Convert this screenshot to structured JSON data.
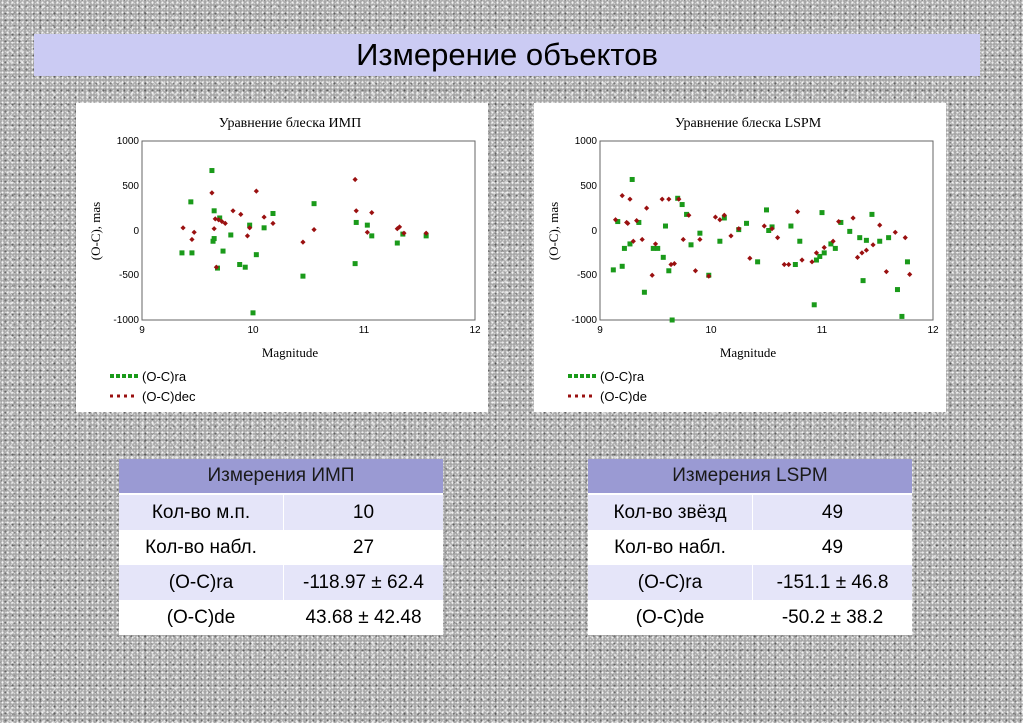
{
  "header": {
    "title": "Измерение объектов"
  },
  "chart_data": [
    {
      "type": "scatter",
      "title": "Уравнение блеска ИМП",
      "xlabel": "Magnitude",
      "ylabel": "(O-C), mas",
      "xlim": [
        9,
        12
      ],
      "ylim": [
        -1000,
        1000
      ],
      "xticks": [
        "9",
        "10",
        "11",
        "12"
      ],
      "yticks": [
        "1000",
        "500",
        "0",
        "-500",
        "-1000"
      ],
      "grid": false,
      "legend": "bottom-left",
      "series": [
        {
          "name": "(O-C)ra",
          "color": "#1a9a1a",
          "marker": "square",
          "x": [
            9.36,
            9.44,
            9.45,
            9.63,
            9.64,
            9.65,
            9.65,
            9.68,
            9.7,
            9.73,
            9.8,
            9.88,
            9.93,
            9.97,
            10.0,
            10.03,
            10.1,
            10.18,
            10.45,
            10.55,
            10.92,
            10.93,
            11.03,
            11.07,
            11.3,
            11.35,
            11.56
          ],
          "y": [
            -250,
            320,
            -250,
            670,
            -120,
            -90,
            220,
            -420,
            140,
            -230,
            -50,
            -380,
            -410,
            60,
            -920,
            -270,
            30,
            190,
            -510,
            300,
            -370,
            90,
            60,
            -60,
            -140,
            -40,
            -60
          ]
        },
        {
          "name": "(O-C)dec",
          "color": "#9a1010",
          "marker": "diamond",
          "x": [
            9.37,
            9.45,
            9.47,
            9.63,
            9.65,
            9.67,
            9.69,
            9.72,
            9.75,
            9.82,
            9.89,
            9.95,
            9.97,
            10.03,
            10.1,
            10.18,
            10.45,
            10.55,
            10.92,
            10.93,
            11.03,
            11.07,
            11.3,
            11.32,
            11.36,
            11.56,
            9.66
          ],
          "y": [
            30,
            -100,
            -20,
            420,
            20,
            -410,
            120,
            100,
            80,
            220,
            180,
            -60,
            30,
            440,
            150,
            80,
            -130,
            10,
            570,
            220,
            -20,
            200,
            20,
            40,
            -30,
            -30,
            130
          ]
        }
      ]
    },
    {
      "type": "scatter",
      "title": "Уравнение блеска LSPM",
      "xlabel": "Magnitude",
      "ylabel": "(O-C), mas",
      "xlim": [
        9,
        12
      ],
      "ylim": [
        -1000,
        1000
      ],
      "xticks": [
        "9",
        "10",
        "11",
        "12"
      ],
      "yticks": [
        "1000",
        "500",
        "0",
        "-500",
        "-1000"
      ],
      "grid": false,
      "legend": "bottom-left",
      "series": [
        {
          "name": "(O-C)ra",
          "color": "#1a9a1a",
          "marker": "square",
          "x": [
            9.12,
            9.2,
            9.22,
            9.27,
            9.29,
            9.35,
            9.4,
            9.48,
            9.52,
            9.59,
            9.62,
            9.65,
            9.7,
            9.74,
            9.78,
            9.82,
            9.9,
            9.98,
            10.08,
            10.12,
            10.25,
            10.42,
            10.5,
            10.52,
            10.72,
            10.76,
            10.8,
            10.93,
            10.95,
            10.98,
            11.0,
            11.08,
            11.12,
            11.17,
            11.34,
            11.37,
            11.4,
            11.45,
            11.52,
            11.6,
            11.72,
            11.77,
            11.68,
            9.57,
            10.55,
            11.25,
            11.02,
            9.16,
            10.32
          ],
          "y": [
            -440,
            -400,
            -200,
            -150,
            570,
            90,
            -690,
            -200,
            -200,
            50,
            -450,
            -1000,
            360,
            290,
            180,
            -160,
            -30,
            -500,
            -120,
            140,
            10,
            -350,
            230,
            0,
            50,
            -380,
            -120,
            -830,
            -330,
            -290,
            200,
            -150,
            -200,
            90,
            -80,
            -560,
            -110,
            180,
            -120,
            -80,
            -960,
            -350,
            -660,
            -300,
            40,
            -10,
            -250,
            100,
            80
          ]
        },
        {
          "name": "(O-C)de",
          "color": "#9a1010",
          "marker": "diamond",
          "x": [
            9.14,
            9.2,
            9.24,
            9.27,
            9.3,
            9.33,
            9.42,
            9.47,
            9.56,
            9.62,
            9.67,
            9.71,
            9.75,
            9.8,
            9.86,
            9.9,
            9.98,
            10.04,
            10.08,
            10.18,
            10.25,
            10.35,
            10.48,
            10.55,
            10.66,
            10.7,
            10.78,
            10.82,
            10.91,
            10.95,
            11.02,
            11.1,
            11.15,
            11.28,
            11.32,
            11.4,
            11.46,
            11.52,
            11.58,
            11.66,
            11.75,
            11.79,
            9.25,
            9.38,
            9.5,
            9.64,
            10.12,
            10.6,
            11.36
          ],
          "y": [
            120,
            390,
            90,
            350,
            -120,
            110,
            250,
            -500,
            350,
            350,
            -370,
            350,
            -100,
            170,
            -450,
            -100,
            -510,
            150,
            120,
            -60,
            20,
            -310,
            50,
            20,
            -380,
            -380,
            210,
            -330,
            -350,
            -250,
            -190,
            -120,
            100,
            140,
            -300,
            -220,
            -160,
            60,
            -460,
            -20,
            -80,
            -490,
            80,
            -100,
            -150,
            -380,
            170,
            -80,
            -250
          ]
        }
      ]
    }
  ],
  "tables": [
    {
      "header": "Измерения ИМП",
      "rows": [
        [
          "Кол-во м.п.",
          "10"
        ],
        [
          "Кол-во набл.",
          "27"
        ],
        [
          "(O-C)ra",
          "-118.97 ± 62.4"
        ],
        [
          "(O-C)de",
          "43.68 ± 42.48"
        ]
      ]
    },
    {
      "header": "Измерения LSPM",
      "rows": [
        [
          "Кол-во звёзд",
          "49"
        ],
        [
          "Кол-во набл.",
          "49"
        ],
        [
          "(O-C)ra",
          "-151.1 ± 46.8"
        ],
        [
          "(O-C)de",
          "-50.2 ± 38.2"
        ]
      ]
    }
  ]
}
